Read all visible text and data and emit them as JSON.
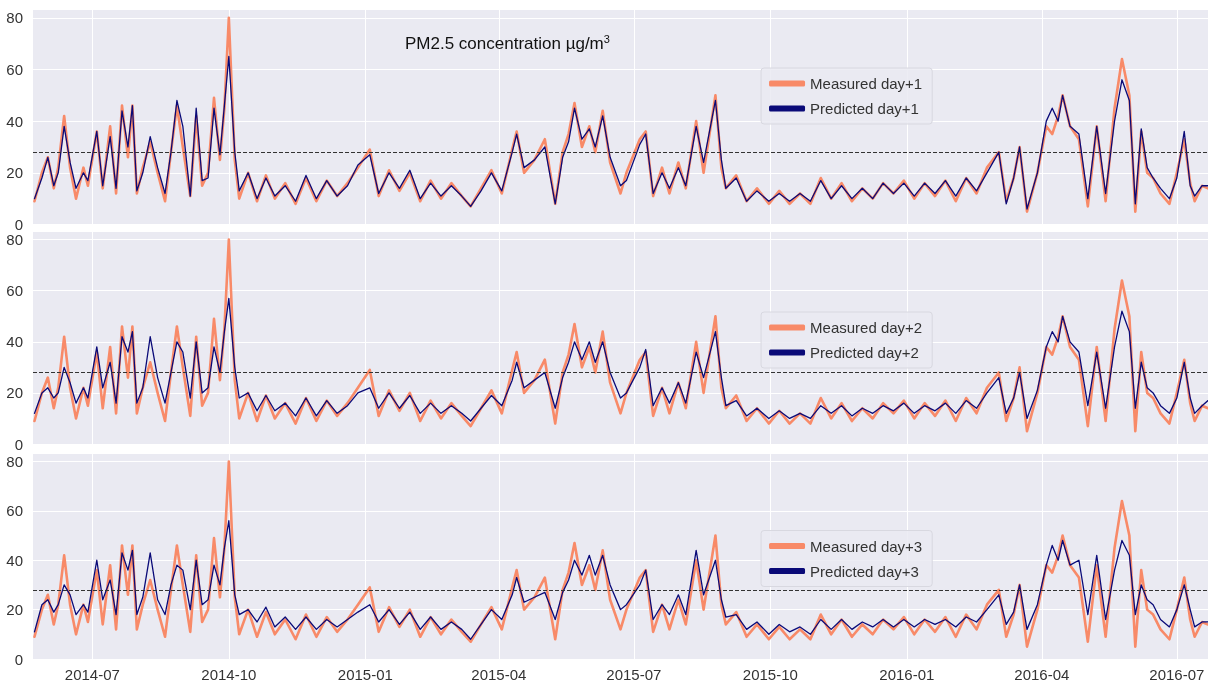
{
  "chart_data": [
    {
      "type": "line",
      "title": "PM2.5 concentration µg/m$^{3}$",
      "x": [
        "2014-05-23",
        "2014-05-28",
        "2014-06-01",
        "2014-06-05",
        "2014-06-08",
        "2014-06-12",
        "2014-06-16",
        "2014-06-20",
        "2014-06-25",
        "2014-06-28",
        "2014-07-04",
        "2014-07-08",
        "2014-07-13",
        "2014-07-17",
        "2014-07-21",
        "2014-07-25",
        "2014-07-28",
        "2014-07-31",
        "2014-08-04",
        "2014-08-09",
        "2014-08-14",
        "2014-08-19",
        "2014-08-23",
        "2014-08-27",
        "2014-08-31",
        "2014-09-05",
        "2014-09-09",
        "2014-09-13",
        "2014-09-17",
        "2014-09-21",
        "2014-09-25",
        "2014-09-28",
        "2014-10-01",
        "2014-10-05",
        "2014-10-08",
        "2014-10-14",
        "2014-10-20",
        "2014-10-26",
        "2014-11-01",
        "2014-11-08",
        "2014-11-15",
        "2014-11-22",
        "2014-11-29",
        "2014-12-06",
        "2014-12-13",
        "2014-12-20",
        "2014-12-27",
        "2015-01-04",
        "2015-01-10",
        "2015-01-17",
        "2015-01-24",
        "2015-01-31",
        "2015-02-07",
        "2015-02-14",
        "2015-02-21",
        "2015-02-28",
        "2015-03-07",
        "2015-03-13",
        "2015-03-20",
        "2015-03-27",
        "2015-04-03",
        "2015-04-10",
        "2015-04-13",
        "2015-04-18",
        "2015-04-25",
        "2015-05-02",
        "2015-05-09",
        "2015-05-14",
        "2015-05-18",
        "2015-05-22",
        "2015-05-27",
        "2015-06-01",
        "2015-06-05",
        "2015-06-10",
        "2015-06-15",
        "2015-06-22",
        "2015-06-26",
        "2015-07-05",
        "2015-07-09",
        "2015-07-14",
        "2015-07-20",
        "2015-07-25",
        "2015-07-31",
        "2015-08-05",
        "2015-08-12",
        "2015-08-17",
        "2015-08-25",
        "2015-08-29",
        "2015-09-01",
        "2015-09-08",
        "2015-09-15",
        "2015-09-22",
        "2015-09-30",
        "2015-10-07",
        "2015-10-14",
        "2015-10-21",
        "2015-10-28",
        "2015-11-04",
        "2015-11-11",
        "2015-11-18",
        "2015-11-25",
        "2015-12-02",
        "2015-12-09",
        "2015-12-16",
        "2015-12-23",
        "2015-12-30",
        "2016-01-06",
        "2016-01-13",
        "2016-01-20",
        "2016-01-27",
        "2016-02-03",
        "2016-02-10",
        "2016-02-17",
        "2016-02-24",
        "2016-03-03",
        "2016-03-08",
        "2016-03-13",
        "2016-03-17",
        "2016-03-22",
        "2016-03-29",
        "2016-04-04",
        "2016-04-08",
        "2016-04-12",
        "2016-04-15",
        "2016-04-20",
        "2016-04-26",
        "2016-05-02",
        "2016-05-08",
        "2016-05-14",
        "2016-05-20",
        "2016-05-25",
        "2016-05-30",
        "2016-06-03",
        "2016-06-07",
        "2016-06-11",
        "2016-06-15",
        "2016-06-20",
        "2016-06-26",
        "2016-07-01",
        "2016-07-06",
        "2016-07-10",
        "2016-07-13",
        "2016-07-18",
        "2016-07-22"
      ],
      "series": [
        {
          "name": "Measured day+1",
          "color": "#f88a68",
          "values": [
            9,
            20,
            26,
            14,
            22,
            42,
            22,
            10,
            22,
            15,
            36,
            14,
            38,
            12,
            46,
            26,
            46,
            12,
            22,
            32,
            20,
            9,
            28,
            46,
            30,
            11,
            42,
            15,
            20,
            49,
            25,
            45,
            80,
            25,
            10,
            20,
            9,
            19,
            10,
            16,
            8,
            18,
            9,
            17,
            11,
            16,
            22,
            29,
            11,
            21,
            13,
            20,
            9,
            17,
            10,
            16,
            11,
            7,
            14,
            21,
            12,
            29,
            36,
            20,
            25,
            33,
            8,
            28,
            35,
            47,
            30,
            38,
            28,
            44,
            24,
            12,
            20,
            33,
            36,
            11,
            22,
            12,
            24,
            14,
            40,
            20,
            50,
            22,
            14,
            19,
            9,
            14,
            8,
            13,
            8,
            12,
            8,
            18,
            10,
            16,
            9,
            14,
            10,
            16,
            12,
            17,
            10,
            16,
            11,
            17,
            9,
            18,
            12,
            22,
            28,
            9,
            18,
            30,
            5,
            20,
            38,
            35,
            42,
            50,
            38,
            33,
            7,
            38,
            9,
            45,
            64,
            50,
            5,
            36,
            20,
            18,
            12,
            8,
            20,
            33,
            16,
            9,
            15,
            14
          ]
        },
        {
          "name": "Predicted day+1",
          "color": "#0a0a78",
          "values": [
            10,
            18,
            26,
            15,
            20,
            38,
            24,
            14,
            20,
            17,
            36,
            15,
            34,
            14,
            44,
            30,
            46,
            13,
            20,
            34,
            22,
            12,
            28,
            48,
            38,
            11,
            45,
            17,
            18,
            45,
            27,
            46,
            65,
            28,
            13,
            20,
            10,
            18,
            11,
            15,
            9,
            19,
            10,
            17,
            11,
            15,
            23,
            27,
            12,
            20,
            14,
            21,
            10,
            16,
            11,
            15,
            11,
            7,
            13,
            20,
            13,
            28,
            35,
            22,
            25,
            30,
            8,
            26,
            32,
            45,
            33,
            37,
            30,
            42,
            26,
            15,
            17,
            31,
            35,
            12,
            20,
            14,
            22,
            15,
            38,
            24,
            48,
            25,
            14,
            18,
            9,
            13,
            9,
            12,
            9,
            12,
            9,
            17,
            10,
            15,
            10,
            14,
            10,
            16,
            12,
            16,
            11,
            16,
            12,
            17,
            11,
            18,
            13,
            20,
            28,
            8,
            18,
            30,
            6,
            20,
            40,
            45,
            40,
            50,
            38,
            35,
            10,
            38,
            12,
            40,
            56,
            48,
            8,
            37,
            22,
            18,
            14,
            10,
            18,
            36,
            15,
            11,
            15,
            15
          ]
        }
      ],
      "xlim": [
        "2014-05-22",
        "2016-07-22"
      ],
      "xticks": [
        "2014-07",
        "2014-10",
        "2015-01",
        "2015-04",
        "2015-07",
        "2015-10",
        "2016-01",
        "2016-04",
        "2016-07"
      ],
      "ylim": [
        0,
        83
      ],
      "yticks": [
        0,
        20,
        40,
        60,
        80
      ],
      "tick_labels": "y",
      "grid": true,
      "legend": "top",
      "marker": "none",
      "line_style": "solid",
      "ref_lines": [
        {
          "axis": "y",
          "value": 28,
          "color": "#333333",
          "line_style": "dashed"
        }
      ]
    },
    {
      "type": "line",
      "legend": "right",
      "x": [
        "2014-05-23",
        "2014-05-28",
        "2014-06-01",
        "2014-06-05",
        "2014-06-08",
        "2014-06-12",
        "2014-06-16",
        "2014-06-20",
        "2014-06-25",
        "2014-06-28",
        "2014-07-04",
        "2014-07-08",
        "2014-07-13",
        "2014-07-17",
        "2014-07-21",
        "2014-07-25",
        "2014-07-28",
        "2014-07-31",
        "2014-08-04",
        "2014-08-09",
        "2014-08-14",
        "2014-08-19",
        "2014-08-23",
        "2014-08-27",
        "2014-08-31",
        "2014-09-05",
        "2014-09-09",
        "2014-09-13",
        "2014-09-17",
        "2014-09-21",
        "2014-09-25",
        "2014-09-28",
        "2014-10-01",
        "2014-10-05",
        "2014-10-08",
        "2014-10-14",
        "2014-10-20",
        "2014-10-26",
        "2014-11-01",
        "2014-11-08",
        "2014-11-15",
        "2014-11-22",
        "2014-11-29",
        "2014-12-06",
        "2014-12-13",
        "2014-12-20",
        "2014-12-27",
        "2015-01-04",
        "2015-01-10",
        "2015-01-17",
        "2015-01-24",
        "2015-01-31",
        "2015-02-07",
        "2015-02-14",
        "2015-02-21",
        "2015-02-28",
        "2015-03-07",
        "2015-03-13",
        "2015-03-20",
        "2015-03-27",
        "2015-04-03",
        "2015-04-10",
        "2015-04-13",
        "2015-04-18",
        "2015-04-25",
        "2015-05-02",
        "2015-05-09",
        "2015-05-14",
        "2015-05-18",
        "2015-05-22",
        "2015-05-27",
        "2015-06-01",
        "2015-06-05",
        "2015-06-10",
        "2015-06-15",
        "2015-06-22",
        "2015-06-26",
        "2015-07-05",
        "2015-07-09",
        "2015-07-14",
        "2015-07-20",
        "2015-07-25",
        "2015-07-31",
        "2015-08-05",
        "2015-08-12",
        "2015-08-17",
        "2015-08-25",
        "2015-08-29",
        "2015-09-01",
        "2015-09-08",
        "2015-09-15",
        "2015-09-22",
        "2015-09-30",
        "2015-10-07",
        "2015-10-14",
        "2015-10-21",
        "2015-10-28",
        "2015-11-04",
        "2015-11-11",
        "2015-11-18",
        "2015-11-25",
        "2015-12-02",
        "2015-12-09",
        "2015-12-16",
        "2015-12-23",
        "2015-12-30",
        "2016-01-06",
        "2016-01-13",
        "2016-01-20",
        "2016-01-27",
        "2016-02-03",
        "2016-02-10",
        "2016-02-17",
        "2016-02-24",
        "2016-03-03",
        "2016-03-08",
        "2016-03-13",
        "2016-03-17",
        "2016-03-22",
        "2016-03-29",
        "2016-04-04",
        "2016-04-08",
        "2016-04-12",
        "2016-04-15",
        "2016-04-20",
        "2016-04-26",
        "2016-05-02",
        "2016-05-08",
        "2016-05-14",
        "2016-05-20",
        "2016-05-25",
        "2016-05-30",
        "2016-06-03",
        "2016-06-07",
        "2016-06-11",
        "2016-06-15",
        "2016-06-20",
        "2016-06-26",
        "2016-07-01",
        "2016-07-06",
        "2016-07-10",
        "2016-07-13",
        "2016-07-18",
        "2016-07-22"
      ],
      "series": [
        {
          "name": "Measured day+2",
          "color": "#f88a68",
          "values": [
            9,
            20,
            26,
            14,
            22,
            42,
            22,
            10,
            22,
            15,
            36,
            14,
            38,
            12,
            46,
            26,
            46,
            12,
            22,
            32,
            20,
            9,
            28,
            46,
            30,
            11,
            42,
            15,
            20,
            49,
            25,
            45,
            80,
            25,
            10,
            20,
            9,
            19,
            10,
            16,
            8,
            18,
            9,
            17,
            11,
            16,
            22,
            29,
            11,
            21,
            13,
            20,
            9,
            17,
            10,
            16,
            11,
            7,
            14,
            21,
            12,
            29,
            36,
            20,
            25,
            33,
            8,
            28,
            35,
            47,
            30,
            38,
            28,
            44,
            24,
            12,
            20,
            33,
            36,
            11,
            22,
            12,
            24,
            14,
            40,
            20,
            50,
            22,
            14,
            19,
            9,
            14,
            8,
            13,
            8,
            12,
            8,
            18,
            10,
            16,
            9,
            14,
            10,
            16,
            12,
            17,
            10,
            16,
            11,
            17,
            9,
            18,
            12,
            22,
            28,
            9,
            18,
            30,
            5,
            20,
            38,
            35,
            42,
            50,
            38,
            33,
            7,
            38,
            9,
            45,
            64,
            50,
            5,
            36,
            20,
            18,
            12,
            8,
            20,
            33,
            16,
            9,
            15,
            14
          ]
        },
        {
          "name": "Predicted day+2",
          "color": "#0a0a78",
          "values": [
            12,
            20,
            22,
            18,
            20,
            30,
            24,
            16,
            22,
            18,
            38,
            22,
            32,
            16,
            42,
            36,
            44,
            16,
            22,
            42,
            26,
            16,
            28,
            40,
            36,
            18,
            40,
            20,
            22,
            38,
            28,
            44,
            57,
            30,
            18,
            20,
            13,
            19,
            13,
            16,
            11,
            18,
            11,
            17,
            12,
            15,
            20,
            22,
            14,
            20,
            14,
            19,
            12,
            16,
            12,
            15,
            12,
            9,
            14,
            19,
            15,
            25,
            32,
            22,
            25,
            28,
            14,
            26,
            32,
            40,
            33,
            40,
            32,
            40,
            28,
            18,
            20,
            30,
            37,
            15,
            22,
            16,
            24,
            16,
            36,
            26,
            44,
            26,
            15,
            17,
            11,
            14,
            10,
            13,
            10,
            12,
            10,
            15,
            12,
            15,
            11,
            14,
            12,
            15,
            13,
            16,
            12,
            15,
            13,
            16,
            12,
            17,
            14,
            20,
            26,
            12,
            18,
            28,
            10,
            21,
            38,
            44,
            40,
            50,
            40,
            36,
            15,
            36,
            14,
            38,
            52,
            44,
            14,
            32,
            22,
            20,
            15,
            12,
            18,
            32,
            18,
            12,
            15,
            17
          ]
        }
      ],
      "xlim": [
        "2014-05-22",
        "2016-07-22"
      ],
      "xticks": [
        "2014-07",
        "2014-10",
        "2015-01",
        "2015-04",
        "2015-07",
        "2015-10",
        "2016-01",
        "2016-04",
        "2016-07"
      ],
      "ylim": [
        0,
        83
      ],
      "yticks": [
        0,
        20,
        40,
        60,
        80
      ],
      "tick_labels": "y",
      "grid": true,
      "marker": "none",
      "line_style": "solid",
      "ref_lines": [
        {
          "axis": "y",
          "value": 28,
          "color": "#333333",
          "line_style": "dashed"
        }
      ]
    },
    {
      "type": "line",
      "legend": "right",
      "x": [
        "2014-05-23",
        "2014-05-28",
        "2014-06-01",
        "2014-06-05",
        "2014-06-08",
        "2014-06-12",
        "2014-06-16",
        "2014-06-20",
        "2014-06-25",
        "2014-06-28",
        "2014-07-04",
        "2014-07-08",
        "2014-07-13",
        "2014-07-17",
        "2014-07-21",
        "2014-07-25",
        "2014-07-28",
        "2014-07-31",
        "2014-08-04",
        "2014-08-09",
        "2014-08-14",
        "2014-08-19",
        "2014-08-23",
        "2014-08-27",
        "2014-08-31",
        "2014-09-05",
        "2014-09-09",
        "2014-09-13",
        "2014-09-17",
        "2014-09-21",
        "2014-09-25",
        "2014-09-28",
        "2014-10-01",
        "2014-10-05",
        "2014-10-08",
        "2014-10-14",
        "2014-10-20",
        "2014-10-26",
        "2014-11-01",
        "2014-11-08",
        "2014-11-15",
        "2014-11-22",
        "2014-11-29",
        "2014-12-06",
        "2014-12-13",
        "2014-12-20",
        "2014-12-27",
        "2015-01-04",
        "2015-01-10",
        "2015-01-17",
        "2015-01-24",
        "2015-01-31",
        "2015-02-07",
        "2015-02-14",
        "2015-02-21",
        "2015-02-28",
        "2015-03-07",
        "2015-03-13",
        "2015-03-20",
        "2015-03-27",
        "2015-04-03",
        "2015-04-10",
        "2015-04-13",
        "2015-04-18",
        "2015-04-25",
        "2015-05-02",
        "2015-05-09",
        "2015-05-14",
        "2015-05-18",
        "2015-05-22",
        "2015-05-27",
        "2015-06-01",
        "2015-06-05",
        "2015-06-10",
        "2015-06-15",
        "2015-06-22",
        "2015-06-26",
        "2015-07-05",
        "2015-07-09",
        "2015-07-14",
        "2015-07-20",
        "2015-07-25",
        "2015-07-31",
        "2015-08-05",
        "2015-08-12",
        "2015-08-17",
        "2015-08-25",
        "2015-08-29",
        "2015-09-01",
        "2015-09-08",
        "2015-09-15",
        "2015-09-22",
        "2015-09-30",
        "2015-10-07",
        "2015-10-14",
        "2015-10-21",
        "2015-10-28",
        "2015-11-04",
        "2015-11-11",
        "2015-11-18",
        "2015-11-25",
        "2015-12-02",
        "2015-12-09",
        "2015-12-16",
        "2015-12-23",
        "2015-12-30",
        "2016-01-06",
        "2016-01-13",
        "2016-01-20",
        "2016-01-27",
        "2016-02-03",
        "2016-02-10",
        "2016-02-17",
        "2016-02-24",
        "2016-03-03",
        "2016-03-08",
        "2016-03-13",
        "2016-03-17",
        "2016-03-22",
        "2016-03-29",
        "2016-04-04",
        "2016-04-08",
        "2016-04-12",
        "2016-04-15",
        "2016-04-20",
        "2016-04-26",
        "2016-05-02",
        "2016-05-08",
        "2016-05-14",
        "2016-05-20",
        "2016-05-25",
        "2016-05-30",
        "2016-06-03",
        "2016-06-07",
        "2016-06-11",
        "2016-06-15",
        "2016-06-20",
        "2016-06-26",
        "2016-07-01",
        "2016-07-06",
        "2016-07-10",
        "2016-07-13",
        "2016-07-18",
        "2016-07-22"
      ],
      "series": [
        {
          "name": "Measured day+3",
          "color": "#f88a68",
          "values": [
            9,
            20,
            26,
            14,
            22,
            42,
            22,
            10,
            22,
            15,
            36,
            14,
            38,
            12,
            46,
            26,
            46,
            12,
            22,
            32,
            20,
            9,
            28,
            46,
            30,
            11,
            42,
            15,
            20,
            49,
            25,
            45,
            80,
            25,
            10,
            20,
            9,
            19,
            10,
            16,
            8,
            18,
            9,
            17,
            11,
            16,
            22,
            29,
            11,
            21,
            13,
            20,
            9,
            17,
            10,
            16,
            11,
            7,
            14,
            21,
            12,
            29,
            36,
            20,
            25,
            33,
            8,
            28,
            35,
            47,
            30,
            38,
            28,
            44,
            24,
            12,
            20,
            33,
            36,
            11,
            22,
            12,
            24,
            14,
            40,
            20,
            50,
            22,
            14,
            19,
            9,
            14,
            8,
            13,
            8,
            12,
            8,
            18,
            10,
            16,
            9,
            14,
            10,
            16,
            12,
            17,
            10,
            16,
            11,
            17,
            9,
            18,
            12,
            22,
            28,
            9,
            18,
            30,
            5,
            20,
            38,
            35,
            42,
            50,
            38,
            33,
            7,
            38,
            9,
            45,
            64,
            50,
            5,
            36,
            20,
            18,
            12,
            8,
            20,
            33,
            16,
            9,
            15,
            14
          ]
        },
        {
          "name": "Predicted day+3",
          "color": "#0a0a78",
          "values": [
            11,
            22,
            24,
            19,
            22,
            30,
            26,
            18,
            22,
            19,
            40,
            24,
            32,
            18,
            43,
            36,
            44,
            18,
            25,
            43,
            24,
            18,
            30,
            38,
            36,
            20,
            40,
            22,
            24,
            38,
            30,
            45,
            56,
            26,
            18,
            20,
            15,
            21,
            13,
            17,
            12,
            17,
            12,
            16,
            13,
            16,
            19,
            22,
            15,
            20,
            14,
            19,
            12,
            17,
            12,
            15,
            12,
            8,
            14,
            20,
            16,
            26,
            33,
            23,
            25,
            27,
            16,
            27,
            32,
            40,
            34,
            42,
            34,
            42,
            30,
            20,
            22,
            30,
            36,
            16,
            22,
            18,
            26,
            18,
            44,
            26,
            40,
            24,
            17,
            18,
            12,
            15,
            10,
            14,
            11,
            13,
            10,
            16,
            12,
            16,
            12,
            15,
            13,
            16,
            13,
            16,
            13,
            16,
            14,
            16,
            13,
            17,
            15,
            20,
            26,
            14,
            19,
            30,
            12,
            22,
            38,
            46,
            40,
            48,
            38,
            40,
            18,
            42,
            16,
            36,
            48,
            42,
            18,
            30,
            24,
            22,
            16,
            13,
            20,
            30,
            20,
            13,
            15,
            15
          ]
        }
      ],
      "xlim": [
        "2014-05-22",
        "2016-07-22"
      ],
      "xticks": [
        "2014-07",
        "2014-10",
        "2015-01",
        "2015-04",
        "2015-07",
        "2015-10",
        "2016-01",
        "2016-04",
        "2016-07"
      ],
      "ylim": [
        0,
        83
      ],
      "yticks": [
        0,
        20,
        40,
        60,
        80
      ],
      "grid": true,
      "marker": "none",
      "line_style": "solid",
      "ref_lines": [
        {
          "axis": "y",
          "value": 28,
          "color": "#333333",
          "line_style": "dashed"
        }
      ]
    }
  ]
}
